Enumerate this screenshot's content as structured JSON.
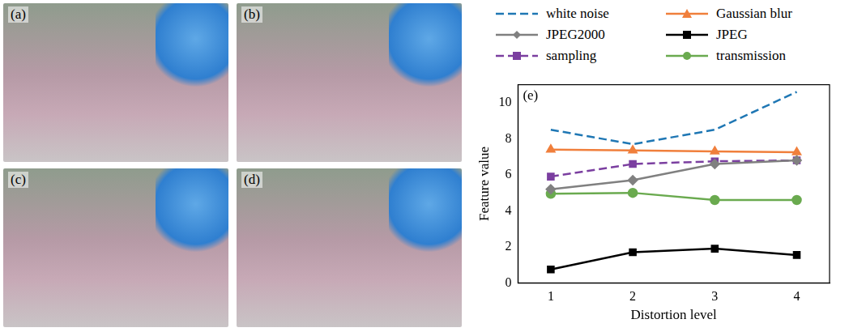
{
  "image_panels": [
    "(a)",
    "(b)",
    "(c)",
    "(d)"
  ],
  "chart_data": {
    "type": "line",
    "annotations": [
      "(e)"
    ],
    "x_label": "Distortion level",
    "y_label": "Feature value",
    "x": [
      1,
      2,
      3,
      4
    ],
    "xlim": [
      0.6,
      4.4
    ],
    "xticks": [
      1,
      2,
      3,
      4
    ],
    "ylim": [
      0,
      11
    ],
    "yticks": [
      0,
      2,
      4,
      6,
      8,
      10
    ],
    "grid": false,
    "legend": "top",
    "series": [
      {
        "name": "white noise",
        "color": "#1f77b4",
        "marker": "none",
        "line_style": "dashed",
        "values": [
          8.5,
          7.7,
          8.5,
          10.6
        ]
      },
      {
        "name": "Gaussian blur",
        "color": "#f07f3c",
        "marker": "triangle",
        "line_style": "solid",
        "values": [
          7.4,
          7.35,
          7.3,
          7.25
        ]
      },
      {
        "name": "JPEG2000",
        "color": "#808080",
        "marker": "diamond",
        "line_style": "solid",
        "values": [
          5.2,
          5.7,
          6.6,
          6.8
        ]
      },
      {
        "name": "JPEG",
        "color": "#000000",
        "marker": "square",
        "line_style": "solid",
        "values": [
          0.75,
          1.7,
          1.9,
          1.55
        ]
      },
      {
        "name": "sampling",
        "color": "#7b3fa0",
        "marker": "square",
        "line_style": "dashed",
        "values": [
          5.9,
          6.6,
          6.75,
          6.8
        ]
      },
      {
        "name": "transmission",
        "color": "#6aaa4f",
        "marker": "circle",
        "line_style": "solid",
        "values": [
          4.95,
          5.0,
          4.6,
          4.6
        ]
      }
    ]
  }
}
